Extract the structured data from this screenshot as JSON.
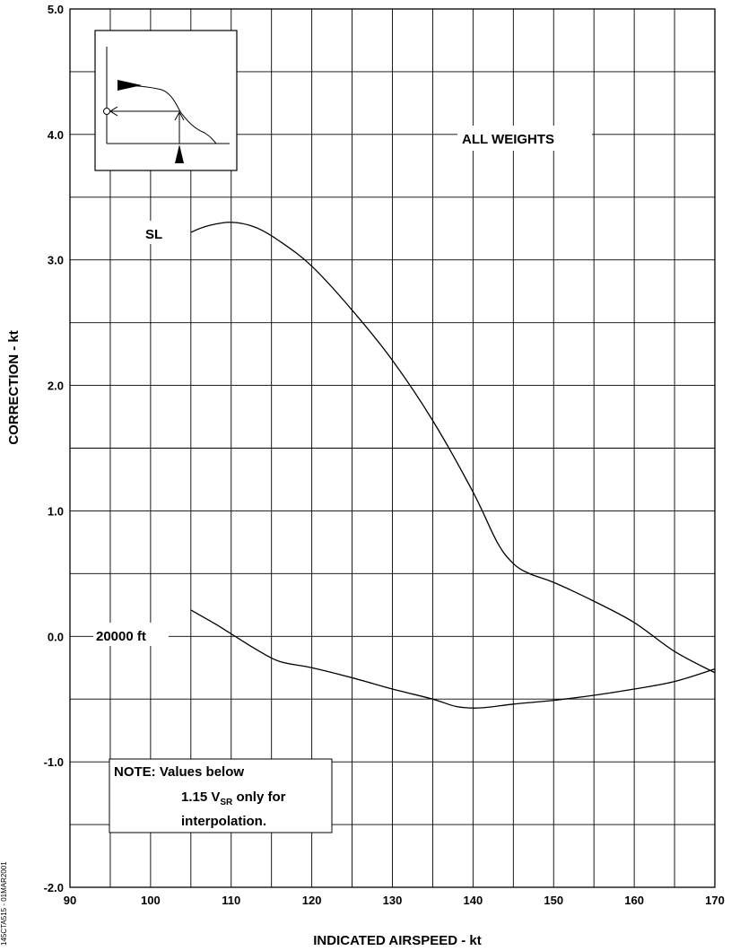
{
  "figure_id": "145CTA515 - 01MAR2001",
  "chart_data": {
    "type": "line",
    "title": "",
    "xlabel": "INDICATED AIRSPEED - kt",
    "ylabel": "CORRECTION - kt",
    "xlim": [
      90,
      170
    ],
    "ylim": [
      -2.0,
      5.0
    ],
    "x_ticks": [
      "90",
      "100",
      "110",
      "120",
      "130",
      "140",
      "150",
      "160",
      "170"
    ],
    "y_ticks": [
      "-2.0",
      "-1.0",
      "0.0",
      "1.0",
      "2.0",
      "3.0",
      "4.0",
      "5.0"
    ],
    "grid": true,
    "annotation": "ALL WEIGHTS",
    "note": {
      "line1": "NOTE: Values below",
      "line2_prefix": "1.15 V",
      "line2_sub": "SR",
      "line2_suffix": " only for",
      "line3": "interpolation."
    },
    "series": [
      {
        "name": "SL",
        "points": [
          [
            105,
            3.22
          ],
          [
            107,
            3.27
          ],
          [
            110,
            3.3
          ],
          [
            113,
            3.26
          ],
          [
            116,
            3.15
          ],
          [
            120,
            2.95
          ],
          [
            125,
            2.6
          ],
          [
            130,
            2.2
          ],
          [
            135,
            1.72
          ],
          [
            140,
            1.15
          ],
          [
            143,
            0.75
          ],
          [
            145,
            0.58
          ],
          [
            147,
            0.5
          ],
          [
            150,
            0.43
          ],
          [
            155,
            0.28
          ],
          [
            160,
            0.11
          ],
          [
            165,
            -0.12
          ],
          [
            170,
            -0.29
          ]
        ]
      },
      {
        "name": "20000 ft",
        "points": [
          [
            105,
            0.21
          ],
          [
            108,
            0.1
          ],
          [
            110,
            0.02
          ],
          [
            113,
            -0.1
          ],
          [
            116,
            -0.2
          ],
          [
            120,
            -0.25
          ],
          [
            125,
            -0.33
          ],
          [
            130,
            -0.42
          ],
          [
            135,
            -0.5
          ],
          [
            138,
            -0.56
          ],
          [
            141,
            -0.57
          ],
          [
            145,
            -0.54
          ],
          [
            150,
            -0.51
          ],
          [
            155,
            -0.47
          ],
          [
            160,
            -0.42
          ],
          [
            165,
            -0.36
          ],
          [
            170,
            -0.26
          ]
        ]
      }
    ]
  }
}
